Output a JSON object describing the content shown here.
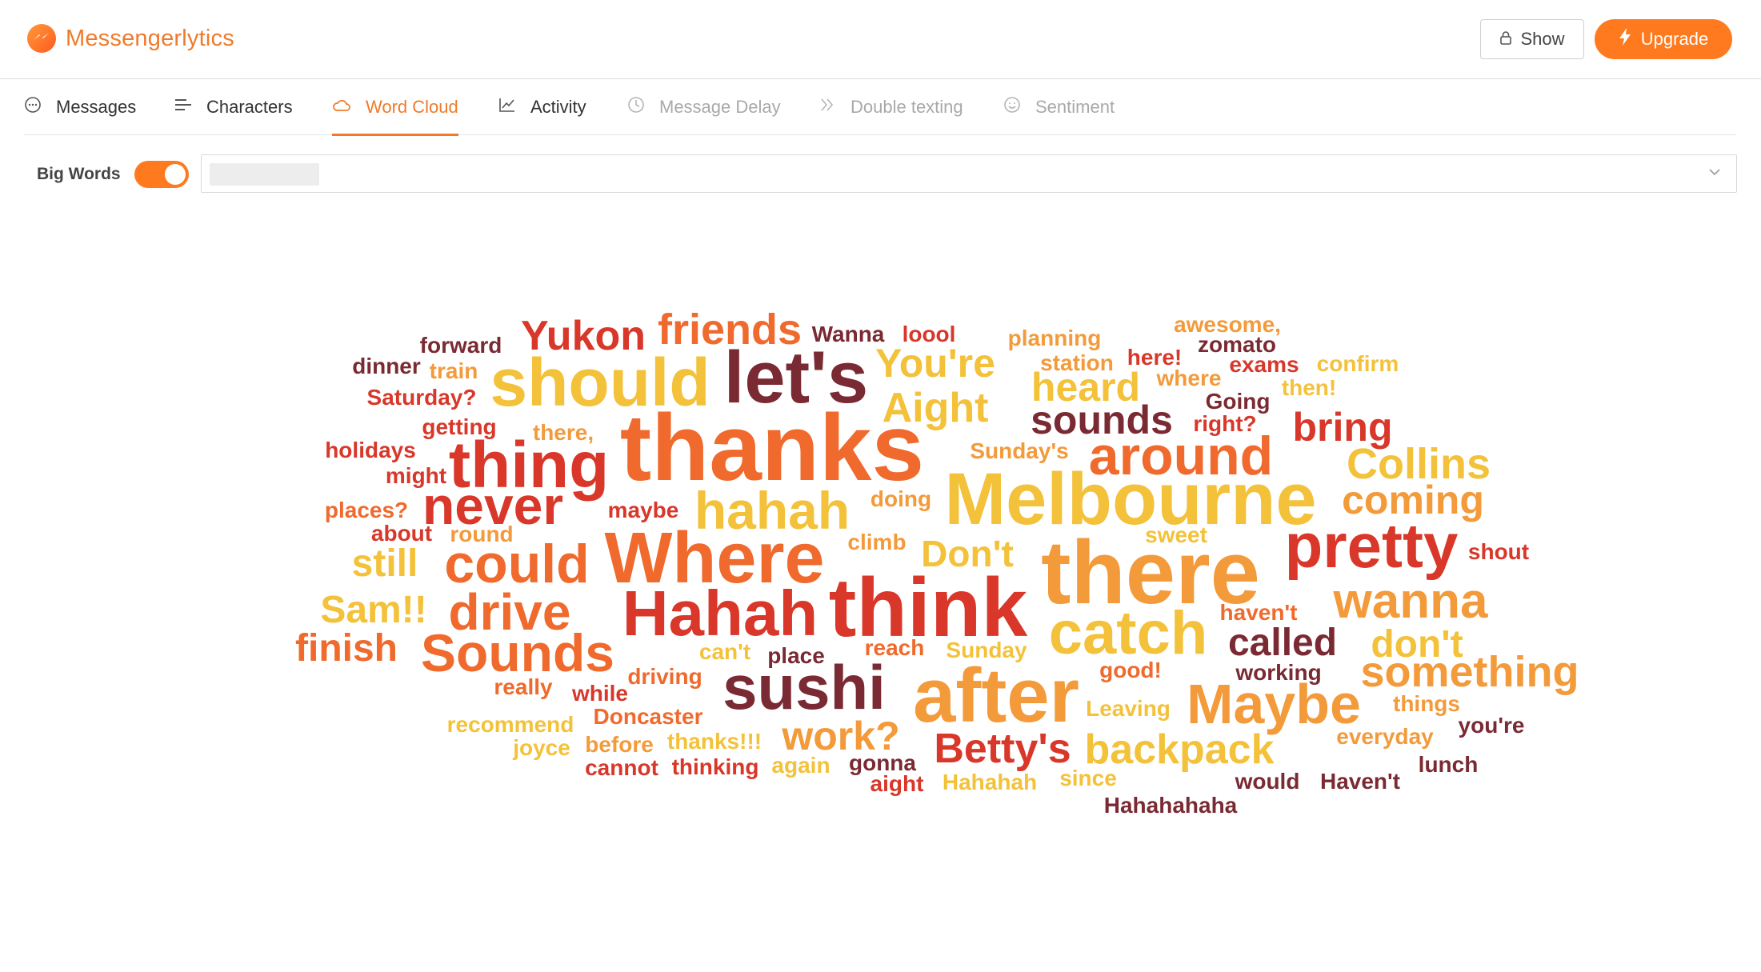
{
  "app": {
    "name": "Messengerlytics"
  },
  "header": {
    "show_label": "Show",
    "upgrade_label": "Upgrade"
  },
  "tabs": [
    {
      "label": "Messages",
      "icon": "chat-bubble-icon",
      "state": "normal"
    },
    {
      "label": "Characters",
      "icon": "text-align-icon",
      "state": "normal"
    },
    {
      "label": "Word Cloud",
      "icon": "cloud-icon",
      "state": "active"
    },
    {
      "label": "Activity",
      "icon": "line-chart-icon",
      "state": "normal"
    },
    {
      "label": "Message Delay",
      "icon": "clock-icon",
      "state": "disabled"
    },
    {
      "label": "Double texting",
      "icon": "double-chevron-icon",
      "state": "disabled"
    },
    {
      "label": "Sentiment",
      "icon": "smiley-icon",
      "state": "disabled"
    }
  ],
  "controls": {
    "big_words_label": "Big Words",
    "big_words_on": true,
    "select_value": ""
  },
  "colors": {
    "accent": "#f07a2a",
    "wc1": "#7a2a33",
    "wc2": "#d8372a",
    "wc3": "#ef6a2c",
    "wc4": "#f39a3a",
    "wc5": "#f3c23a"
  },
  "cloud": {
    "words": [
      {
        "text": "thanks",
        "color": "#ef6a2c"
      },
      {
        "text": "Melbourne",
        "color": "#f3c23a"
      },
      {
        "text": "there",
        "color": "#f39a3a"
      },
      {
        "text": "think",
        "color": "#d8372a"
      },
      {
        "text": "let's",
        "color": "#7a2a33"
      },
      {
        "text": "Where",
        "color": "#ef6a2c"
      },
      {
        "text": "after",
        "color": "#f39a3a"
      },
      {
        "text": "should",
        "color": "#f3c23a"
      },
      {
        "text": "thing",
        "color": "#d8372a"
      },
      {
        "text": "pretty",
        "color": "#d8372a"
      },
      {
        "text": "Hahah",
        "color": "#d8372a"
      },
      {
        "text": "sushi",
        "color": "#7a2a33"
      },
      {
        "text": "catch",
        "color": "#f3c23a"
      },
      {
        "text": "hahah",
        "color": "#f3c23a"
      },
      {
        "text": "around",
        "color": "#ef6a2c"
      },
      {
        "text": "never",
        "color": "#d8372a"
      },
      {
        "text": "could",
        "color": "#ef6a2c"
      },
      {
        "text": "Sounds",
        "color": "#ef6a2c"
      },
      {
        "text": "Maybe",
        "color": "#f39a3a"
      },
      {
        "text": "drive",
        "color": "#ef6a2c"
      },
      {
        "text": "wanna",
        "color": "#f39a3a"
      },
      {
        "text": "backpack",
        "color": "#f3c23a"
      },
      {
        "text": "something",
        "color": "#f39a3a"
      },
      {
        "text": "Collins",
        "color": "#f3c23a"
      },
      {
        "text": "coming",
        "color": "#f39a3a"
      },
      {
        "text": "friends",
        "color": "#ef6a2c"
      },
      {
        "text": "Yukon",
        "color": "#d8372a"
      },
      {
        "text": "You're",
        "color": "#f3c23a"
      },
      {
        "text": "Aight",
        "color": "#f3c23a"
      },
      {
        "text": "sounds",
        "color": "#7a2a33"
      },
      {
        "text": "heard",
        "color": "#f3c23a"
      },
      {
        "text": "bring",
        "color": "#d8372a"
      },
      {
        "text": "Betty's",
        "color": "#d8372a"
      },
      {
        "text": "work?",
        "color": "#f39a3a"
      },
      {
        "text": "called",
        "color": "#7a2a33"
      },
      {
        "text": "don't",
        "color": "#f3c23a"
      },
      {
        "text": "Don't",
        "color": "#f3c23a"
      },
      {
        "text": "still",
        "color": "#f3c23a"
      },
      {
        "text": "Sam!!",
        "color": "#f3c23a"
      },
      {
        "text": "finish",
        "color": "#ef6a2c"
      },
      {
        "text": "forward",
        "color": "#7a2a33"
      },
      {
        "text": "dinner",
        "color": "#7a2a33"
      },
      {
        "text": "train",
        "color": "#f39a3a"
      },
      {
        "text": "Saturday?",
        "color": "#d8372a"
      },
      {
        "text": "Wanna",
        "color": "#7a2a33"
      },
      {
        "text": "loool",
        "color": "#d8372a"
      },
      {
        "text": "planning",
        "color": "#f39a3a"
      },
      {
        "text": "station",
        "color": "#f39a3a"
      },
      {
        "text": "here!",
        "color": "#d8372a"
      },
      {
        "text": "awesome,",
        "color": "#f39a3a"
      },
      {
        "text": "zomato",
        "color": "#7a2a33"
      },
      {
        "text": "exams",
        "color": "#d8372a"
      },
      {
        "text": "confirm",
        "color": "#f3c23a"
      },
      {
        "text": "where",
        "color": "#f39a3a"
      },
      {
        "text": "then!",
        "color": "#f3c23a"
      },
      {
        "text": "Going",
        "color": "#7a2a33"
      },
      {
        "text": "right?",
        "color": "#d8372a"
      },
      {
        "text": "getting",
        "color": "#d8372a"
      },
      {
        "text": "there,",
        "color": "#f39a3a"
      },
      {
        "text": "holidays",
        "color": "#d8372a"
      },
      {
        "text": "might",
        "color": "#d8372a"
      },
      {
        "text": "Sunday's",
        "color": "#f39a3a"
      },
      {
        "text": "places?",
        "color": "#ef6a2c"
      },
      {
        "text": "maybe",
        "color": "#d8372a"
      },
      {
        "text": "doing",
        "color": "#f39a3a"
      },
      {
        "text": "about",
        "color": "#d8372a"
      },
      {
        "text": "round",
        "color": "#f39a3a"
      },
      {
        "text": "sweet",
        "color": "#f3c23a"
      },
      {
        "text": "climb",
        "color": "#f39a3a"
      },
      {
        "text": "shout",
        "color": "#d8372a"
      },
      {
        "text": "haven't",
        "color": "#ef6a2c"
      },
      {
        "text": "can't",
        "color": "#f3c23a"
      },
      {
        "text": "place",
        "color": "#7a2a33"
      },
      {
        "text": "reach",
        "color": "#ef6a2c"
      },
      {
        "text": "Sunday",
        "color": "#f3c23a"
      },
      {
        "text": "really",
        "color": "#ef6a2c"
      },
      {
        "text": "while",
        "color": "#d8372a"
      },
      {
        "text": "driving",
        "color": "#ef6a2c"
      },
      {
        "text": "good!",
        "color": "#ef6a2c"
      },
      {
        "text": "working",
        "color": "#7a2a33"
      },
      {
        "text": "Leaving",
        "color": "#f3c23a"
      },
      {
        "text": "things",
        "color": "#f39a3a"
      },
      {
        "text": "you're",
        "color": "#7a2a33"
      },
      {
        "text": "recommend",
        "color": "#f3c23a"
      },
      {
        "text": "Doncaster",
        "color": "#ef6a2c"
      },
      {
        "text": "joyce",
        "color": "#f3c23a"
      },
      {
        "text": "before",
        "color": "#f39a3a"
      },
      {
        "text": "thanks!!!",
        "color": "#f3c23a"
      },
      {
        "text": "everyday",
        "color": "#f39a3a"
      },
      {
        "text": "cannot",
        "color": "#d8372a"
      },
      {
        "text": "thinking",
        "color": "#d8372a"
      },
      {
        "text": "again",
        "color": "#f3c23a"
      },
      {
        "text": "gonna",
        "color": "#7a2a33"
      },
      {
        "text": "aight",
        "color": "#d8372a"
      },
      {
        "text": "Hahahah",
        "color": "#f3c23a"
      },
      {
        "text": "since",
        "color": "#f3c23a"
      },
      {
        "text": "would",
        "color": "#7a2a33"
      },
      {
        "text": "Haven't",
        "color": "#7a2a33"
      },
      {
        "text": "lunch",
        "color": "#7a2a33"
      },
      {
        "text": "Hahahahaha",
        "color": "#7a2a33"
      }
    ]
  }
}
